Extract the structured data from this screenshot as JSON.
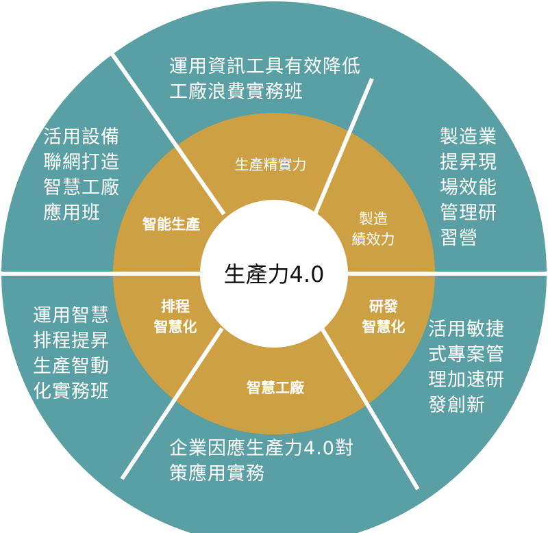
{
  "colors": {
    "outer_ring": "#5a9fa3",
    "inner_ring": "#cda043",
    "center": "#ffffff",
    "divider": "#ffffff"
  },
  "center": {
    "label": "生產力4.0"
  },
  "inner": [
    {
      "id": "top",
      "lines": [
        "生產精實力"
      ],
      "bold": false
    },
    {
      "id": "upper-right",
      "lines": [
        "製造",
        "績效力"
      ],
      "bold": false
    },
    {
      "id": "right",
      "lines": [
        "研發",
        "智慧化"
      ],
      "bold": true
    },
    {
      "id": "bottom",
      "lines": [
        "智慧工廠"
      ],
      "bold": true
    },
    {
      "id": "left",
      "lines": [
        "排程",
        "智慧化"
      ],
      "bold": true
    },
    {
      "id": "upper-left",
      "lines": [
        "智能生產"
      ],
      "bold": true
    }
  ],
  "outer": [
    {
      "id": "top",
      "lines": [
        "運用資訊工具有效降低",
        "工廠浪費實務班"
      ]
    },
    {
      "id": "upper-right",
      "lines": [
        "製造業",
        "提昇現",
        "場效能",
        "管理研",
        "習營"
      ]
    },
    {
      "id": "right",
      "lines": [
        "活用敏捷",
        "式專案管",
        "理加速研",
        "發創新"
      ]
    },
    {
      "id": "bottom",
      "lines": [
        "企業因應生產力4.0對",
        "策應用實務"
      ]
    },
    {
      "id": "left",
      "lines": [
        "運用智慧",
        "排程提昇",
        "生產智動",
        "化實務班"
      ]
    },
    {
      "id": "upper-left",
      "lines": [
        "活用設備",
        "聯網打造",
        "智慧工廠",
        "應用班"
      ]
    }
  ]
}
